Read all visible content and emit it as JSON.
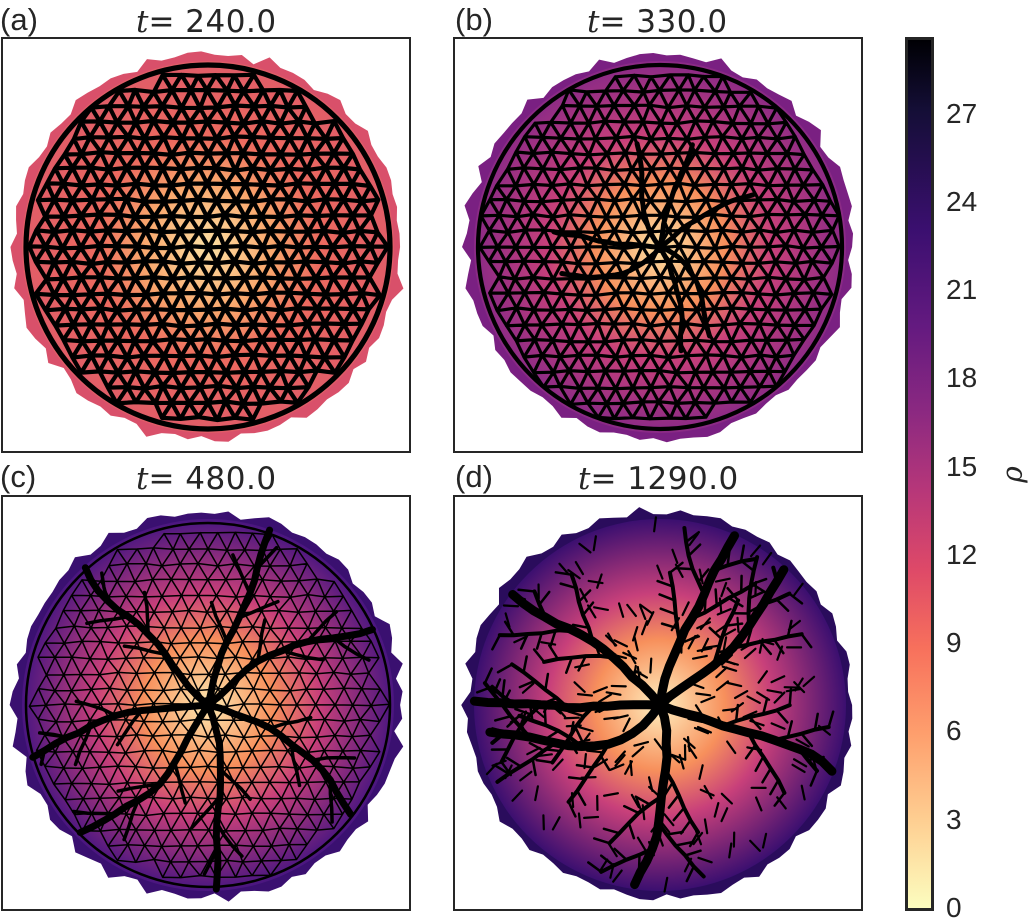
{
  "figure": {
    "panels": [
      {
        "label": "(a)",
        "t_symbol": "t",
        "t_value": "= 240.0",
        "rim_color": "#d9506a",
        "fill_outer": "#e05c68",
        "fill_inner": "#fde0a4",
        "stage": "mesh"
      },
      {
        "label": "(b)",
        "t_symbol": "t",
        "t_value": "= 330.0",
        "rim_color": "#7a2082",
        "fill_outer": "#8a2a86",
        "fill_inner": "#fde0a4",
        "stage": "mesh-veins"
      },
      {
        "label": "(c)",
        "t_symbol": "t",
        "t_value": "= 480.0",
        "rim_color": "#3a1070",
        "fill_outer": "#4a1680",
        "fill_inner": "#fde8b0",
        "stage": "thin-mesh-veins"
      },
      {
        "label": "(d)",
        "t_symbol": "t",
        "t_value": "= 1290.0",
        "rim_color": "#2a0c5c",
        "fill_outer": "#3b0f70",
        "fill_inner": "#fff0c0",
        "stage": "tree"
      }
    ],
    "colorbar": {
      "label": "ρ",
      "ticks": [
        "0",
        "3",
        "6",
        "9",
        "12",
        "15",
        "18",
        "21",
        "24",
        "27"
      ],
      "min": 0,
      "max": 29.5,
      "colormap": "magma_r"
    }
  },
  "chart_data": {
    "type": "heatmap",
    "title": "",
    "subplots": [
      {
        "label": "(a)",
        "title": "t = 240.0",
        "description": "Dense triangular network covering disk; density ρ ~ 3 center to ~12 at edge"
      },
      {
        "label": "(b)",
        "title": "t = 330.0",
        "description": "Triangular network with emerging thick radial channels; ρ ~ 3 center to ~18 at edge"
      },
      {
        "label": "(c)",
        "title": "t = 480.0",
        "description": "Thinning mesh with branched thick channels; ρ ~ 2 center to ~24 at edge"
      },
      {
        "label": "(d)",
        "title": "t = 1290.0",
        "description": "Tree-like branching network without loops; ρ ~ 1 center to ~27 at edge"
      }
    ],
    "colorbar": {
      "label": "ρ",
      "ticks": [
        0,
        3,
        6,
        9,
        12,
        15,
        18,
        21,
        24,
        27
      ],
      "range": [
        0,
        29.5
      ],
      "colormap": "magma_r"
    },
    "xlabel": "",
    "ylabel": "",
    "grid": false,
    "legend": "colorbar right"
  }
}
